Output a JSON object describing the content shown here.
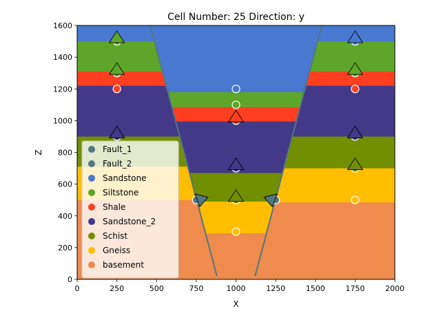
{
  "chart_data": {
    "type": "geologic-cross-section",
    "title": "Cell Number: 25 Direction: y",
    "xlabel": "X",
    "ylabel": "Z",
    "xlim": [
      0,
      2000
    ],
    "ylim": [
      0,
      1600
    ],
    "xticks": [
      0,
      250,
      500,
      750,
      1000,
      1250,
      1500,
      1750,
      2000
    ],
    "yticks": [
      0,
      200,
      400,
      600,
      800,
      1000,
      1200,
      1400,
      1600
    ],
    "legend_position": "lower-left",
    "colors": {
      "Fault_1": "#527682",
      "Fault_2": "#527682",
      "Sandstone": "#4878d0",
      "Siltstone": "#5da629",
      "Shale": "#ff3f20",
      "Sandstone_2": "#443988",
      "Schist": "#728f02",
      "Gneiss": "#ffbe00",
      "basement": "#ef8b4d"
    },
    "legend": [
      {
        "name": "Fault_1",
        "color": "#527682"
      },
      {
        "name": "Fault_2",
        "color": "#527682"
      },
      {
        "name": "Sandstone",
        "color": "#4878d0"
      },
      {
        "name": "Siltstone",
        "color": "#5da629"
      },
      {
        "name": "Shale",
        "color": "#ff3f20"
      },
      {
        "name": "Sandstone_2",
        "color": "#443988"
      },
      {
        "name": "Schist",
        "color": "#728f02"
      },
      {
        "name": "Gneiss",
        "color": "#ffbe00"
      },
      {
        "name": "basement",
        "color": "#ef8b4d"
      }
    ],
    "faults": [
      {
        "name": "Fault_1",
        "points": [
          [
            460,
            1600
          ],
          [
            880,
            20
          ]
        ]
      },
      {
        "name": "Fault_2",
        "points": [
          [
            1540,
            1600
          ],
          [
            1120,
            20
          ]
        ]
      }
    ],
    "blocks": [
      {
        "name": "left",
        "x_range": [
          0,
          500
        ],
        "tops": [
          {
            "unit": "Siltstone",
            "z": 1500
          },
          {
            "unit": "Shale",
            "z": 1310
          },
          {
            "unit": "Sandstone_2",
            "z": 1220
          },
          {
            "unit": "Schist",
            "z": 900
          },
          {
            "unit": "Gneiss",
            "z": 710
          },
          {
            "unit": "basement",
            "z": 500
          }
        ]
      },
      {
        "name": "center",
        "x_range": [
          500,
          1500
        ],
        "tops": [
          {
            "unit": "Siltstone",
            "z": 1180
          },
          {
            "unit": "Shale",
            "z": 1085
          },
          {
            "unit": "Sandstone_2",
            "z": 995
          },
          {
            "unit": "Schist",
            "z": 670
          },
          {
            "unit": "Gneiss",
            "z": 490
          },
          {
            "unit": "basement",
            "z": 290
          }
        ]
      },
      {
        "name": "right",
        "x_range": [
          1500,
          2000
        ],
        "tops": [
          {
            "unit": "Siltstone",
            "z": 1500
          },
          {
            "unit": "Shale",
            "z": 1310
          },
          {
            "unit": "Sandstone_2",
            "z": 1220
          },
          {
            "unit": "Schist",
            "z": 900
          },
          {
            "unit": "Gneiss",
            "z": 700
          },
          {
            "unit": "basement",
            "z": 485
          }
        ]
      }
    ],
    "surface_points": [
      {
        "x": 250,
        "z": 1500,
        "unit": "Siltstone"
      },
      {
        "x": 250,
        "z": 1300,
        "unit": "Siltstone"
      },
      {
        "x": 250,
        "z": 1200,
        "unit": "Shale"
      },
      {
        "x": 250,
        "z": 900,
        "unit": "Sandstone_2"
      },
      {
        "x": 1000,
        "z": 1200,
        "unit": "Sandstone"
      },
      {
        "x": 1000,
        "z": 1100,
        "unit": "Siltstone"
      },
      {
        "x": 1000,
        "z": 1000,
        "unit": "Shale"
      },
      {
        "x": 1000,
        "z": 700,
        "unit": "Sandstone_2"
      },
      {
        "x": 1000,
        "z": 500,
        "unit": "Schist"
      },
      {
        "x": 1000,
        "z": 300,
        "unit": "Gneiss"
      },
      {
        "x": 1750,
        "z": 1500,
        "unit": "Sandstone"
      },
      {
        "x": 1750,
        "z": 1300,
        "unit": "Siltstone"
      },
      {
        "x": 1750,
        "z": 1200,
        "unit": "Shale"
      },
      {
        "x": 1750,
        "z": 900,
        "unit": "Sandstone_2"
      },
      {
        "x": 1750,
        "z": 700,
        "unit": "Schist"
      },
      {
        "x": 1750,
        "z": 500,
        "unit": "Gneiss"
      },
      {
        "x": 750,
        "z": 500,
        "unit": "Fault_1"
      },
      {
        "x": 1250,
        "z": 500,
        "unit": "Fault_2"
      }
    ],
    "orientations": [
      {
        "x": 250,
        "z": 1500,
        "unit": "Siltstone",
        "dir": "up"
      },
      {
        "x": 250,
        "z": 1300,
        "unit": "Siltstone",
        "dir": "up"
      },
      {
        "x": 250,
        "z": 900,
        "unit": "Sandstone_2",
        "dir": "up"
      },
      {
        "x": 1000,
        "z": 1000,
        "unit": "Shale",
        "dir": "up"
      },
      {
        "x": 1000,
        "z": 700,
        "unit": "Sandstone_2",
        "dir": "up"
      },
      {
        "x": 1000,
        "z": 500,
        "unit": "Schist",
        "dir": "up"
      },
      {
        "x": 1750,
        "z": 1500,
        "unit": "Sandstone",
        "dir": "up"
      },
      {
        "x": 1750,
        "z": 1300,
        "unit": "Siltstone",
        "dir": "up"
      },
      {
        "x": 1750,
        "z": 900,
        "unit": "Sandstone_2",
        "dir": "up"
      },
      {
        "x": 1750,
        "z": 700,
        "unit": "Schist",
        "dir": "up"
      },
      {
        "x": 780,
        "z": 500,
        "unit": "Fault_1",
        "dir": "left"
      },
      {
        "x": 1220,
        "z": 500,
        "unit": "Fault_2",
        "dir": "right"
      }
    ]
  }
}
